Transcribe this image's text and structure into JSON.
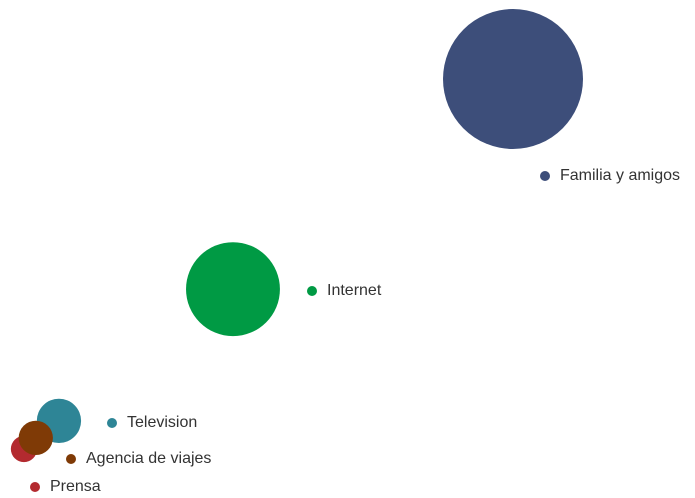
{
  "chart_data": {
    "type": "bubble",
    "xlim": [
      0,
      100
    ],
    "ylim": [
      0,
      100
    ],
    "series": [
      {
        "name": "Familia y amigos",
        "color": "#3d4e7a",
        "x": 100,
        "y": 100,
        "size": 100
      },
      {
        "name": "Internet",
        "color": "#009a44",
        "x": 43.2,
        "y": 43.2,
        "size": 45
      },
      {
        "name": "Television",
        "color": "#2e8596",
        "x": 7.9,
        "y": 7.6,
        "size": 10
      },
      {
        "name": "Prensa",
        "color": "#b32a2f",
        "x": 0.8,
        "y": 0,
        "size": 3.5
      },
      {
        "name": "Agencia de viajes",
        "color": "#7f3a06",
        "x": 3.2,
        "y": 3.0,
        "size": 6
      }
    ]
  }
}
